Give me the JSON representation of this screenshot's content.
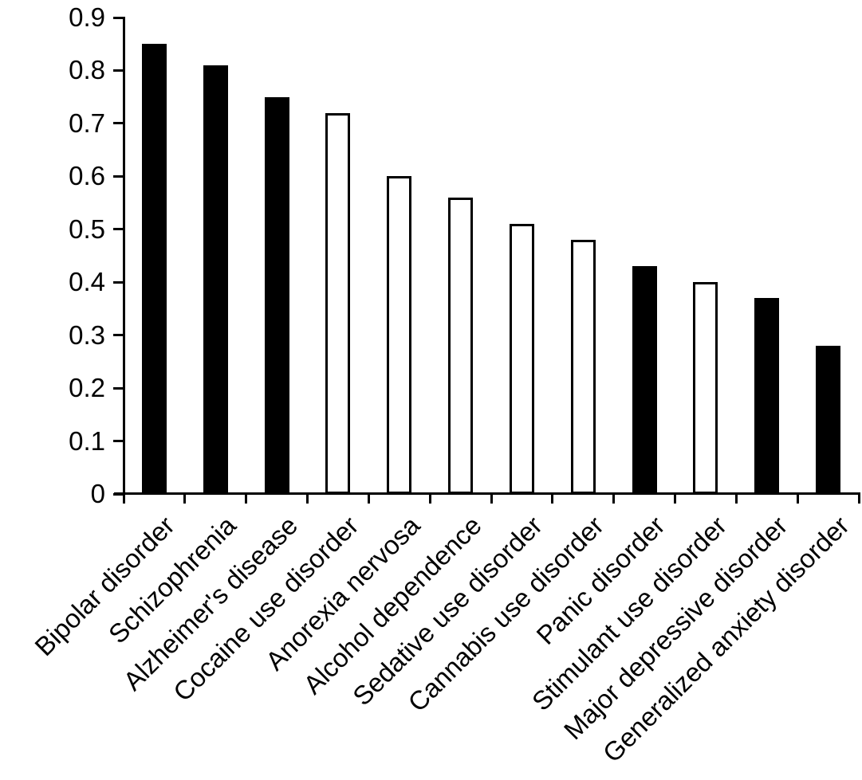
{
  "figure": {
    "background": "#ffffff",
    "axis_color": "#000000",
    "text_color": "#000000"
  },
  "chart_data": {
    "type": "bar",
    "title": "",
    "xlabel": "",
    "ylabel": "",
    "categories": [
      "Bipolar disorder",
      "Schizophrenia",
      "Alzheimer's disease",
      "Cocaine use disorder",
      "Anorexia nervosa",
      "Alcohol dependence",
      "Sedative use disorder",
      "Cannabis use disorder",
      "Panic disorder",
      "Stimulant use disorder",
      "Major depressive disorder",
      "Generalized anxiety disorder"
    ],
    "values": [
      0.85,
      0.81,
      0.75,
      0.72,
      0.6,
      0.56,
      0.51,
      0.48,
      0.43,
      0.4,
      0.37,
      0.28
    ],
    "bar_styles": [
      "filled",
      "filled",
      "filled",
      "open",
      "open",
      "open",
      "open",
      "open",
      "filled",
      "open",
      "filled",
      "filled"
    ],
    "bar_fill_filled": "#000000",
    "bar_fill_open": "#ffffff",
    "bar_outline": "#000000",
    "ylim": [
      0,
      0.9
    ],
    "yticks": [
      0,
      0.1,
      0.2,
      0.3,
      0.4,
      0.5,
      0.6,
      0.7,
      0.8,
      0.9
    ],
    "ytick_labels": [
      "0",
      "0.1",
      "0.2",
      "0.3",
      "0.4",
      "0.5",
      "0.6",
      "0.7",
      "0.8",
      "0.9"
    ],
    "x_tick_count": 13,
    "grid": false,
    "legend": "none",
    "x_label_rotation_deg": 45
  }
}
